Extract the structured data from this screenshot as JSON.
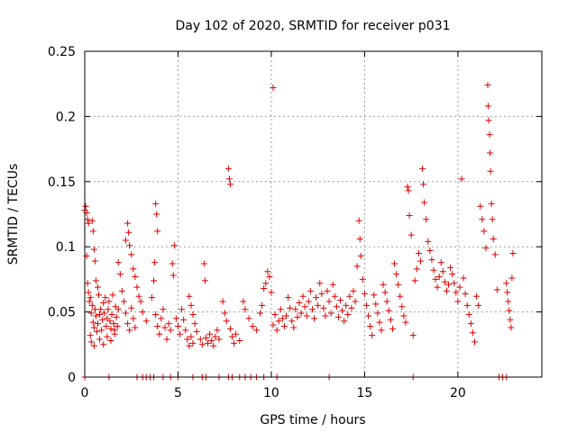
{
  "chart_data": {
    "type": "scatter",
    "title": "Day 102 of 2020, SRMTID for receiver p031",
    "xlabel": "GPS time / hours",
    "ylabel": "SRMTID / TECUs",
    "xlim": [
      0,
      24.5
    ],
    "ylim": [
      0,
      0.25
    ],
    "xticks": [
      0,
      5,
      10,
      15,
      20
    ],
    "xtick_labels": [
      "0",
      "5",
      "10",
      "15",
      "20"
    ],
    "yticks": [
      0,
      0.05,
      0.1,
      0.15,
      0.2,
      0.25
    ],
    "ytick_labels": [
      "0",
      "0.05",
      "0.1",
      "0.15",
      "0.2",
      "0.25"
    ],
    "grid": true,
    "marker": "+",
    "color": "#e00000",
    "series": [
      {
        "name": "SRMTID",
        "points": [
          [
            0.0,
            0.128
          ],
          [
            0.05,
            0.131
          ],
          [
            0.1,
            0.126
          ],
          [
            0.15,
            0.121
          ],
          [
            0.2,
            0.118
          ],
          [
            0.1,
            0.093
          ],
          [
            0.15,
            0.072
          ],
          [
            0.2,
            0.065
          ],
          [
            0.25,
            0.058
          ],
          [
            0.3,
            0.061
          ],
          [
            0.35,
            0.049
          ],
          [
            0.4,
            0.055
          ],
          [
            0.45,
            0.042
          ],
          [
            0.5,
            0.038
          ],
          [
            0.55,
            0.052
          ],
          [
            0.6,
            0.047
          ],
          [
            0.65,
            0.035
          ],
          [
            0.7,
            0.041
          ],
          [
            0.75,
            0.063
          ],
          [
            0.8,
            0.048
          ],
          [
            0.85,
            0.052
          ],
          [
            0.9,
            0.036
          ],
          [
            0.95,
            0.044
          ],
          [
            1.0,
            0.057
          ],
          [
            1.05,
            0.049
          ],
          [
            1.1,
            0.061
          ],
          [
            1.15,
            0.039
          ],
          [
            1.2,
            0.045
          ],
          [
            1.25,
            0.052
          ],
          [
            1.3,
            0.058
          ],
          [
            1.35,
            0.043
          ],
          [
            1.4,
            0.037
          ],
          [
            1.45,
            0.048
          ],
          [
            1.5,
            0.063
          ],
          [
            1.55,
            0.041
          ],
          [
            1.6,
            0.036
          ],
          [
            1.65,
            0.054
          ],
          [
            1.7,
            0.046
          ],
          [
            1.75,
            0.039
          ],
          [
            1.8,
            0.052
          ],
          [
            0.4,
            0.12
          ],
          [
            0.45,
            0.112
          ],
          [
            0.5,
            0.098
          ],
          [
            0.55,
            0.089
          ],
          [
            0.6,
            0.074
          ],
          [
            0.7,
            0.069
          ],
          [
            0.3,
            0.032
          ],
          [
            0.35,
            0.027
          ],
          [
            0.5,
            0.024
          ],
          [
            0.8,
            0.029
          ],
          [
            1.0,
            0.025
          ],
          [
            1.2,
            0.031
          ],
          [
            1.4,
            0.028
          ],
          [
            1.6,
            0.033
          ],
          [
            1.8,
            0.088
          ],
          [
            1.9,
            0.079
          ],
          [
            2.0,
            0.066
          ],
          [
            2.1,
            0.058
          ],
          [
            2.2,
            0.049
          ],
          [
            2.3,
            0.041
          ],
          [
            2.4,
            0.036
          ],
          [
            2.5,
            0.053
          ],
          [
            2.6,
            0.045
          ],
          [
            2.7,
            0.038
          ],
          [
            2.2,
            0.105
          ],
          [
            2.3,
            0.118
          ],
          [
            2.35,
            0.111
          ],
          [
            2.4,
            0.101
          ],
          [
            2.5,
            0.094
          ],
          [
            2.6,
            0.083
          ],
          [
            2.7,
            0.077
          ],
          [
            2.8,
            0.069
          ],
          [
            2.9,
            0.062
          ],
          [
            3.0,
            0.058
          ],
          [
            3.1,
            0.05
          ],
          [
            3.3,
            0.043
          ],
          [
            3.6,
            0.061
          ],
          [
            3.7,
            0.074
          ],
          [
            3.75,
            0.088
          ],
          [
            3.8,
            0.133
          ],
          [
            3.85,
            0.125
          ],
          [
            3.9,
            0.112
          ],
          [
            3.8,
            0.048
          ],
          [
            3.9,
            0.039
          ],
          [
            4.0,
            0.033
          ],
          [
            4.1,
            0.045
          ],
          [
            4.2,
            0.052
          ],
          [
            4.3,
            0.038
          ],
          [
            4.4,
            0.029
          ],
          [
            4.5,
            0.041
          ],
          [
            4.6,
            0.036
          ],
          [
            4.7,
            0.087
          ],
          [
            4.75,
            0.078
          ],
          [
            4.8,
            0.101
          ],
          [
            4.9,
            0.045
          ],
          [
            5.0,
            0.039
          ],
          [
            5.1,
            0.033
          ],
          [
            5.2,
            0.052
          ],
          [
            5.3,
            0.044
          ],
          [
            5.4,
            0.036
          ],
          [
            5.5,
            0.029
          ],
          [
            5.6,
            0.024
          ],
          [
            5.7,
            0.031
          ],
          [
            5.8,
            0.026
          ],
          [
            5.6,
            0.062
          ],
          [
            5.7,
            0.055
          ],
          [
            5.8,
            0.048
          ],
          [
            5.9,
            0.041
          ],
          [
            6.0,
            0.035
          ],
          [
            6.2,
            0.029
          ],
          [
            6.3,
            0.025
          ],
          [
            6.4,
            0.087
          ],
          [
            6.45,
            0.074
          ],
          [
            6.5,
            0.03
          ],
          [
            6.6,
            0.026
          ],
          [
            6.7,
            0.033
          ],
          [
            6.8,
            0.028
          ],
          [
            6.9,
            0.024
          ],
          [
            7.0,
            0.031
          ],
          [
            7.1,
            0.036
          ],
          [
            7.2,
            0.029
          ],
          [
            7.4,
            0.058
          ],
          [
            7.5,
            0.049
          ],
          [
            7.6,
            0.043
          ],
          [
            7.7,
            0.16
          ],
          [
            7.75,
            0.152
          ],
          [
            7.8,
            0.148
          ],
          [
            7.8,
            0.037
          ],
          [
            7.9,
            0.031
          ],
          [
            8.0,
            0.026
          ],
          [
            8.1,
            0.033
          ],
          [
            8.3,
            0.028
          ],
          [
            8.5,
            0.058
          ],
          [
            8.6,
            0.052
          ],
          [
            8.8,
            0.045
          ],
          [
            9.0,
            0.039
          ],
          [
            9.2,
            0.036
          ],
          [
            9.4,
            0.049
          ],
          [
            9.5,
            0.055
          ],
          [
            9.6,
            0.068
          ],
          [
            9.7,
            0.072
          ],
          [
            9.8,
            0.081
          ],
          [
            9.9,
            0.077
          ],
          [
            10.0,
            0.065
          ],
          [
            10.1,
            0.222
          ],
          [
            10.1,
            0.04
          ],
          [
            10.2,
            0.048
          ],
          [
            10.3,
            0.036
          ],
          [
            10.4,
            0.043
          ],
          [
            10.5,
            0.052
          ],
          [
            10.6,
            0.045
          ],
          [
            10.7,
            0.039
          ],
          [
            10.8,
            0.047
          ],
          [
            10.9,
            0.061
          ],
          [
            11.0,
            0.053
          ],
          [
            11.1,
            0.043
          ],
          [
            11.2,
            0.038
          ],
          [
            11.3,
            0.052
          ],
          [
            11.4,
            0.046
          ],
          [
            11.5,
            0.057
          ],
          [
            11.6,
            0.049
          ],
          [
            11.7,
            0.062
          ],
          [
            11.8,
            0.054
          ],
          [
            11.9,
            0.047
          ],
          [
            12.0,
            0.058
          ],
          [
            12.1,
            0.066
          ],
          [
            12.2,
            0.052
          ],
          [
            12.3,
            0.045
          ],
          [
            12.4,
            0.061
          ],
          [
            12.5,
            0.055
          ],
          [
            12.6,
            0.072
          ],
          [
            12.7,
            0.064
          ],
          [
            12.8,
            0.053
          ],
          [
            12.9,
            0.047
          ],
          [
            13.0,
            0.066
          ],
          [
            13.1,
            0.058
          ],
          [
            13.2,
            0.049
          ],
          [
            13.3,
            0.071
          ],
          [
            13.4,
            0.062
          ],
          [
            13.5,
            0.054
          ],
          [
            13.6,
            0.046
          ],
          [
            13.7,
            0.059
          ],
          [
            13.8,
            0.051
          ],
          [
            13.9,
            0.043
          ],
          [
            14.0,
            0.055
          ],
          [
            14.1,
            0.048
          ],
          [
            14.2,
            0.062
          ],
          [
            14.3,
            0.053
          ],
          [
            14.4,
            0.066
          ],
          [
            14.5,
            0.058
          ],
          [
            14.6,
            0.085
          ],
          [
            14.7,
            0.12
          ],
          [
            14.75,
            0.106
          ],
          [
            14.8,
            0.093
          ],
          [
            14.9,
            0.075
          ],
          [
            15.0,
            0.064
          ],
          [
            15.1,
            0.055
          ],
          [
            15.2,
            0.047
          ],
          [
            15.3,
            0.039
          ],
          [
            15.4,
            0.032
          ],
          [
            15.5,
            0.063
          ],
          [
            15.6,
            0.056
          ],
          [
            15.7,
            0.049
          ],
          [
            15.8,
            0.042
          ],
          [
            15.9,
            0.036
          ],
          [
            16.0,
            0.071
          ],
          [
            16.1,
            0.065
          ],
          [
            16.2,
            0.058
          ],
          [
            16.3,
            0.051
          ],
          [
            16.4,
            0.044
          ],
          [
            16.5,
            0.037
          ],
          [
            16.6,
            0.087
          ],
          [
            16.7,
            0.079
          ],
          [
            16.8,
            0.071
          ],
          [
            16.9,
            0.062
          ],
          [
            17.0,
            0.054
          ],
          [
            17.1,
            0.047
          ],
          [
            17.2,
            0.042
          ],
          [
            17.3,
            0.146
          ],
          [
            17.35,
            0.143
          ],
          [
            17.4,
            0.124
          ],
          [
            17.5,
            0.109
          ],
          [
            17.6,
            0.032
          ],
          [
            17.7,
            0.074
          ],
          [
            17.8,
            0.083
          ],
          [
            17.9,
            0.095
          ],
          [
            18.0,
            0.089
          ],
          [
            18.1,
            0.16
          ],
          [
            18.15,
            0.148
          ],
          [
            18.2,
            0.134
          ],
          [
            18.3,
            0.121
          ],
          [
            18.4,
            0.104
          ],
          [
            18.5,
            0.097
          ],
          [
            18.6,
            0.09
          ],
          [
            18.7,
            0.082
          ],
          [
            18.8,
            0.075
          ],
          [
            18.9,
            0.069
          ],
          [
            19.0,
            0.077
          ],
          [
            19.1,
            0.088
          ],
          [
            19.2,
            0.081
          ],
          [
            19.3,
            0.073
          ],
          [
            19.4,
            0.066
          ],
          [
            19.5,
            0.071
          ],
          [
            19.6,
            0.084
          ],
          [
            19.7,
            0.079
          ],
          [
            19.8,
            0.072
          ],
          [
            19.9,
            0.065
          ],
          [
            20.0,
            0.058
          ],
          [
            20.1,
            0.069
          ],
          [
            20.2,
            0.152
          ],
          [
            20.3,
            0.076
          ],
          [
            20.4,
            0.064
          ],
          [
            20.5,
            0.055
          ],
          [
            20.6,
            0.048
          ],
          [
            20.7,
            0.041
          ],
          [
            20.8,
            0.034
          ],
          [
            20.9,
            0.027
          ],
          [
            21.0,
            0.062
          ],
          [
            21.1,
            0.055
          ],
          [
            21.2,
            0.131
          ],
          [
            21.3,
            0.121
          ],
          [
            21.4,
            0.112
          ],
          [
            21.5,
            0.099
          ],
          [
            21.6,
            0.224
          ],
          [
            21.62,
            0.208
          ],
          [
            21.65,
            0.197
          ],
          [
            21.7,
            0.186
          ],
          [
            21.72,
            0.172
          ],
          [
            21.75,
            0.158
          ],
          [
            21.8,
            0.133
          ],
          [
            21.85,
            0.121
          ],
          [
            21.9,
            0.106
          ],
          [
            22.0,
            0.094
          ],
          [
            22.1,
            0.067
          ],
          [
            22.6,
            0.072
          ],
          [
            22.65,
            0.065
          ],
          [
            22.7,
            0.058
          ],
          [
            22.75,
            0.051
          ],
          [
            22.8,
            0.044
          ],
          [
            22.85,
            0.038
          ],
          [
            22.9,
            0.076
          ],
          [
            22.95,
            0.095
          ],
          [
            0.0,
            0.0
          ],
          [
            1.3,
            0.0
          ],
          [
            2.8,
            0.0
          ],
          [
            3.1,
            0.0
          ],
          [
            3.3,
            0.0
          ],
          [
            3.5,
            0.0
          ],
          [
            3.7,
            0.0
          ],
          [
            4.2,
            0.0
          ],
          [
            4.6,
            0.0
          ],
          [
            5.0,
            0.0
          ],
          [
            5.8,
            0.0
          ],
          [
            6.3,
            0.0
          ],
          [
            6.5,
            0.0
          ],
          [
            7.2,
            0.0
          ],
          [
            7.7,
            0.0
          ],
          [
            7.9,
            0.0
          ],
          [
            8.3,
            0.0
          ],
          [
            8.6,
            0.0
          ],
          [
            8.9,
            0.0
          ],
          [
            9.2,
            0.0
          ],
          [
            9.6,
            0.0
          ],
          [
            10.3,
            0.0
          ],
          [
            13.1,
            0.0
          ],
          [
            17.6,
            0.0
          ],
          [
            22.2,
            0.0
          ],
          [
            22.4,
            0.0
          ],
          [
            22.6,
            0.0
          ]
        ]
      }
    ]
  }
}
